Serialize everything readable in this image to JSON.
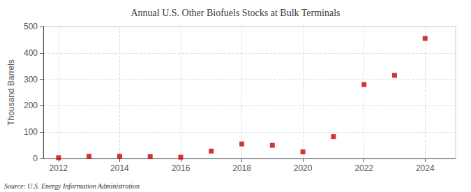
{
  "chart_data": {
    "type": "scatter",
    "title": "Annual U.S. Other Biofuels Stocks at Bulk Terminals",
    "ylabel": "Thousand Barrels",
    "annotations": [
      "Source: U.S. Energy Information Administration"
    ],
    "x": [
      2012,
      2013,
      2014,
      2015,
      2016,
      2017,
      2018,
      2019,
      2020,
      2021,
      2022,
      2023,
      2024
    ],
    "values": [
      3,
      8,
      8,
      7,
      5,
      28,
      55,
      50,
      25,
      83,
      280,
      315,
      455
    ],
    "color": "#cc0000",
    "marker": "square",
    "xlim": [
      2011.5,
      2025.0
    ],
    "xticks": [
      2012,
      2014,
      2016,
      2018,
      2020,
      2022,
      2024
    ],
    "ylim": [
      0,
      500
    ],
    "yticks": [
      0,
      100,
      200,
      300,
      400,
      500
    ],
    "grid": true
  }
}
